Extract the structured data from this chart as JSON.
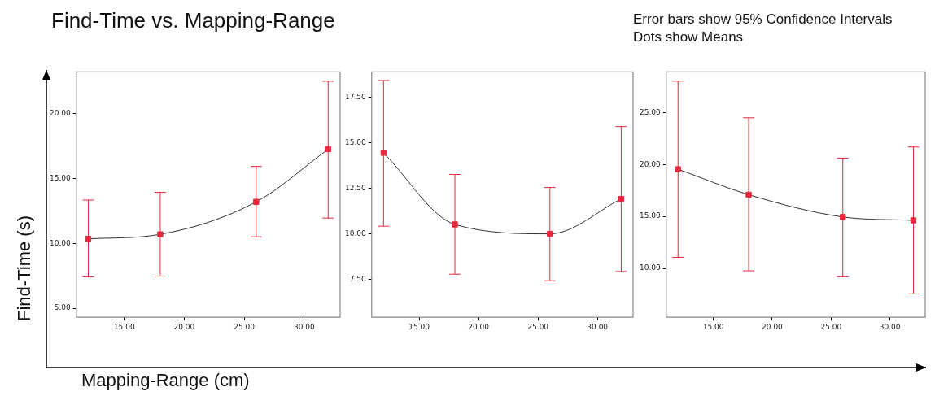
{
  "chart_data": [
    {
      "type": "line",
      "title": "Find-Time vs. Mapping-Range",
      "xlabel": "Mapping-Range (cm)",
      "ylabel": "Find-Time (s)",
      "x": [
        12,
        18,
        26,
        32
      ],
      "marker": "square",
      "grid": false,
      "legend": false,
      "series": [
        {
          "color": "#e8283c",
          "values": [
            10.34,
            10.69,
            13.19,
            17.25
          ],
          "errors": [
            [
              7.41,
              13.33
            ],
            [
              7.47,
              13.92
            ],
            [
              10.5,
              15.92
            ],
            [
              11.94,
              22.48
            ]
          ]
        }
      ],
      "xlim": [
        11,
        33
      ],
      "xticks": [
        {
          "value": 15,
          "label": "15.00"
        },
        {
          "value": 20,
          "label": "20.00"
        },
        {
          "value": 25,
          "label": "25.00"
        },
        {
          "value": 30,
          "label": "30.00"
        }
      ],
      "ylim": [
        4.3,
        23.2
      ],
      "yticks": [
        {
          "value": 5,
          "label": "5.00"
        },
        {
          "value": 10,
          "label": "10.00"
        },
        {
          "value": 15,
          "label": "15.00"
        },
        {
          "value": 20,
          "label": "20.00"
        }
      ]
    },
    {
      "type": "line",
      "x": [
        12,
        18,
        26,
        32
      ],
      "marker": "square",
      "grid": false,
      "legend": false,
      "series": [
        {
          "color": "#e8283c",
          "values": [
            14.45,
            10.51,
            9.99,
            11.91
          ],
          "errors": [
            [
              10.41,
              18.43
            ],
            [
              7.77,
              13.26
            ],
            [
              7.41,
              12.54
            ],
            [
              7.92,
              15.89
            ]
          ]
        }
      ],
      "xlim": [
        11,
        33
      ],
      "xticks": [
        {
          "value": 15,
          "label": "15.00"
        },
        {
          "value": 20,
          "label": "20.00"
        },
        {
          "value": 25,
          "label": "25.00"
        },
        {
          "value": 30,
          "label": "30.00"
        }
      ],
      "ylim": [
        5.4,
        18.9
      ],
      "yticks": [
        {
          "value": 7.5,
          "label": "7.50"
        },
        {
          "value": 10,
          "label": "10.00"
        },
        {
          "value": 12.5,
          "label": "12.50"
        },
        {
          "value": 15,
          "label": "15.00"
        },
        {
          "value": 17.5,
          "label": "17.50"
        }
      ]
    },
    {
      "type": "line",
      "annotations": [
        "Error bars show 95% Confidence Intervals",
        "Dots show Means"
      ],
      "x": [
        12,
        18,
        26,
        32
      ],
      "marker": "square",
      "grid": false,
      "legend": false,
      "series": [
        {
          "color": "#e8283c",
          "values": [
            19.54,
            17.09,
            14.95,
            14.62
          ],
          "errors": [
            [
              11.07,
              28.01
            ],
            [
              9.77,
              24.49
            ],
            [
              9.2,
              20.61
            ],
            [
              7.55,
              21.68
            ]
          ]
        }
      ],
      "xlim": [
        11,
        33
      ],
      "xticks": [
        {
          "value": 15,
          "label": "15.00"
        },
        {
          "value": 20,
          "label": "20.00"
        },
        {
          "value": 25,
          "label": "25.00"
        },
        {
          "value": 30,
          "label": "30.00"
        }
      ],
      "ylim": [
        5.3,
        28.9
      ],
      "yticks": [
        {
          "value": 10,
          "label": "10.00"
        },
        {
          "value": 15,
          "label": "15.00"
        },
        {
          "value": 20,
          "label": "20.00"
        },
        {
          "value": 25,
          "label": "25.00"
        }
      ]
    }
  ]
}
